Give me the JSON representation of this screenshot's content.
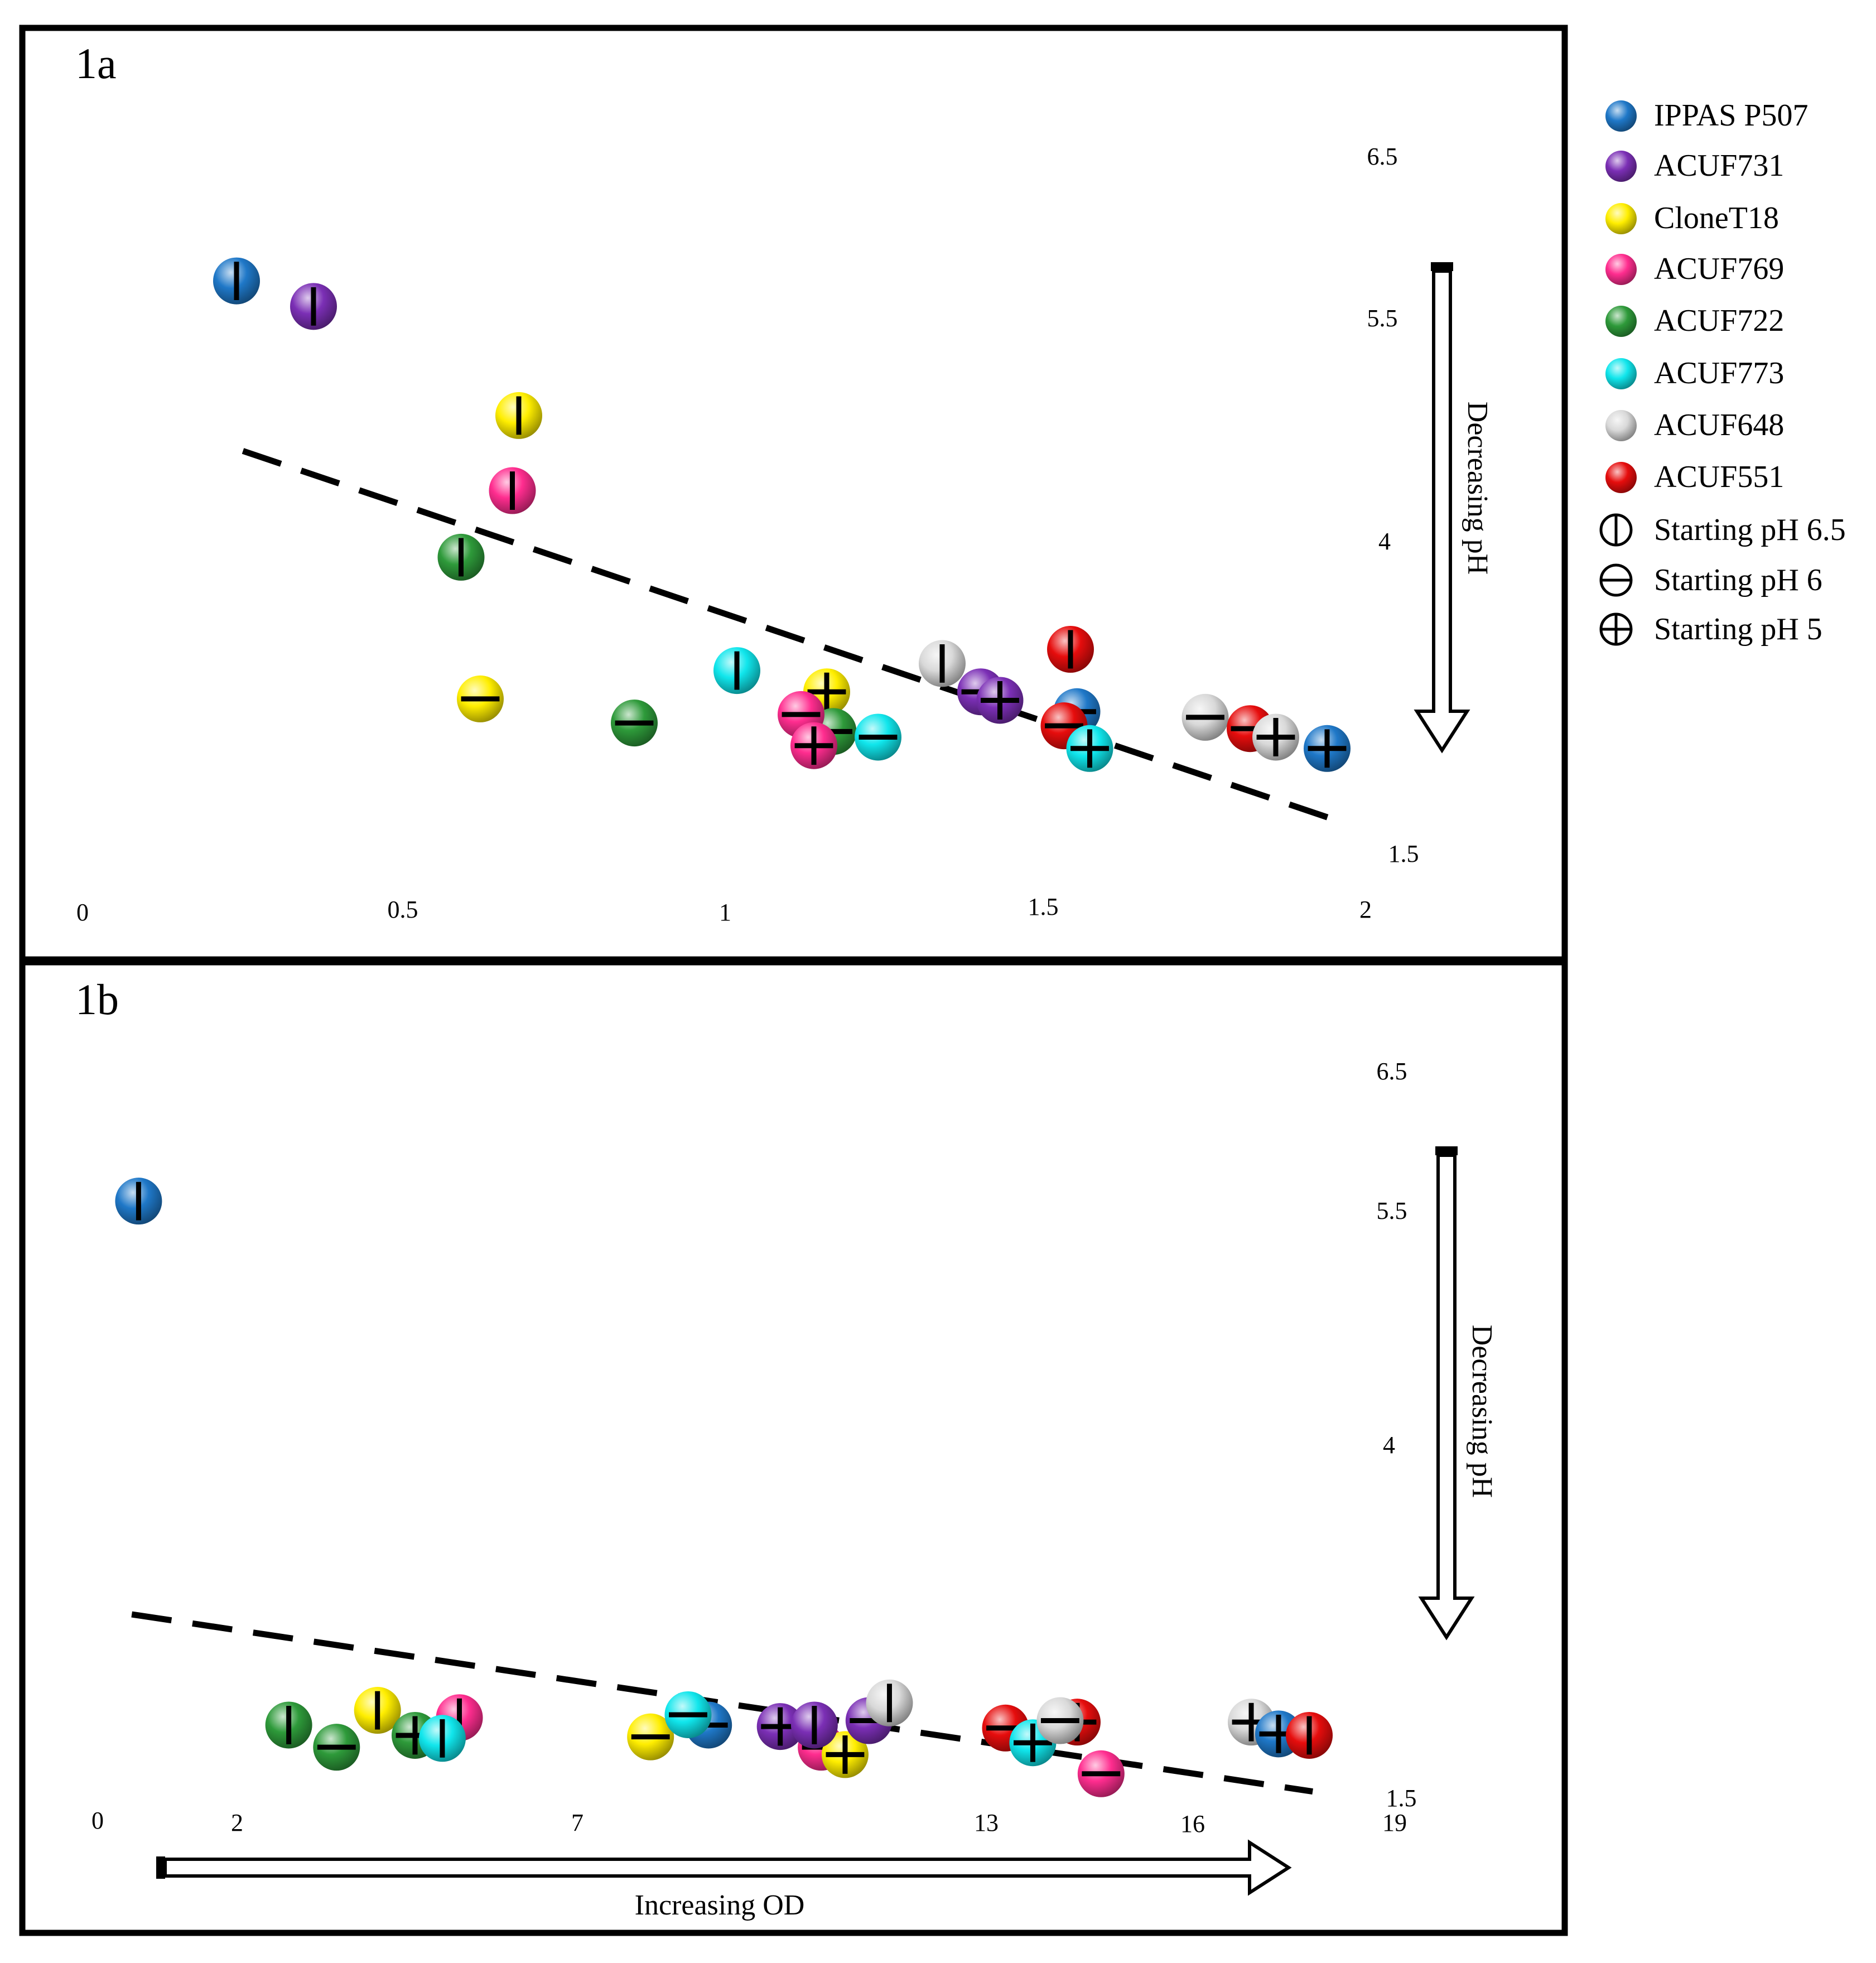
{
  "palette": {
    "IPPAS P507": "#1f78c8",
    "ACUF731": "#7b2fb5",
    "CloneT18": "#ffee00",
    "ACUF769": "#ff2d8f",
    "ACUF722": "#2e9a3a",
    "ACUF773": "#10e6ec",
    "ACUF648": "#d9d9d9",
    "ACUF551": "#e60d0d"
  },
  "legend": {
    "strains": [
      {
        "label": "IPPAS P507",
        "color": "#1f78c8"
      },
      {
        "label": "ACUF731",
        "color": "#7b2fb5"
      },
      {
        "label": "CloneT18",
        "color": "#ffee00"
      },
      {
        "label": "ACUF769",
        "color": "#ff2d8f"
      },
      {
        "label": "ACUF722",
        "color": "#2e9a3a"
      },
      {
        "label": "ACUF773",
        "color": "#10e6ec"
      },
      {
        "label": "ACUF648",
        "color": "#d9d9d9"
      },
      {
        "label": "ACUF551",
        "color": "#e60d0d"
      }
    ],
    "markers": [
      {
        "label": "Starting pH 6.5",
        "symbol": "vbar"
      },
      {
        "label": "Starting pH 6",
        "symbol": "hbar"
      },
      {
        "label": "Starting pH 5",
        "symbol": "plus"
      }
    ]
  },
  "chart_data": [
    {
      "type": "scatter",
      "panel_label": "1a",
      "x_ticks": [
        "0",
        "0.5",
        "1",
        "1.5",
        "2"
      ],
      "y_ticks": [
        "6.5",
        "5.5",
        "4",
        "1.5"
      ],
      "ylabel": "Decreasing pH",
      "xlim": [
        0,
        2
      ],
      "ylim": [
        1.5,
        6.5
      ],
      "trend": {
        "style": "dashed",
        "x": [
          0.25,
          1.95
        ],
        "y": [
          4.4,
          1.8
        ]
      },
      "points": [
        {
          "strain": "IPPAS P507",
          "start_pH": "6.5",
          "x": 0.24,
          "y": 5.6
        },
        {
          "strain": "ACUF731",
          "start_pH": "6.5",
          "x": 0.36,
          "y": 5.42
        },
        {
          "strain": "CloneT18",
          "start_pH": "6.5",
          "x": 0.68,
          "y": 4.65
        },
        {
          "strain": "ACUF769",
          "start_pH": "6.5",
          "x": 0.67,
          "y": 4.12
        },
        {
          "strain": "ACUF722",
          "start_pH": "6.5",
          "x": 0.59,
          "y": 3.65
        },
        {
          "strain": "CloneT18",
          "start_pH": "6",
          "x": 0.62,
          "y": 2.65
        },
        {
          "strain": "ACUF722",
          "start_pH": "6",
          "x": 0.86,
          "y": 2.48
        },
        {
          "strain": "ACUF773",
          "start_pH": "6.5",
          "x": 1.02,
          "y": 2.85
        },
        {
          "strain": "CloneT18",
          "start_pH": "5",
          "x": 1.16,
          "y": 2.7
        },
        {
          "strain": "ACUF722",
          "start_pH": "6",
          "x": 1.17,
          "y": 2.42
        },
        {
          "strain": "ACUF769",
          "start_pH": "6",
          "x": 1.12,
          "y": 2.54
        },
        {
          "strain": "ACUF769",
          "start_pH": "5",
          "x": 1.14,
          "y": 2.32
        },
        {
          "strain": "ACUF773",
          "start_pH": "6",
          "x": 1.24,
          "y": 2.38
        },
        {
          "strain": "ACUF648",
          "start_pH": "6.5",
          "x": 1.34,
          "y": 2.9
        },
        {
          "strain": "ACUF731",
          "start_pH": "6",
          "x": 1.4,
          "y": 2.7
        },
        {
          "strain": "ACUF731",
          "start_pH": "5",
          "x": 1.43,
          "y": 2.64
        },
        {
          "strain": "IPPAS P507",
          "start_pH": "6",
          "x": 1.55,
          "y": 2.56
        },
        {
          "strain": "ACUF551",
          "start_pH": "6.5",
          "x": 1.54,
          "y": 3.0
        },
        {
          "strain": "ACUF551",
          "start_pH": "6",
          "x": 1.53,
          "y": 2.46
        },
        {
          "strain": "ACUF773",
          "start_pH": "5",
          "x": 1.57,
          "y": 2.3
        },
        {
          "strain": "ACUF648",
          "start_pH": "6",
          "x": 1.75,
          "y": 2.52
        },
        {
          "strain": "ACUF551",
          "start_pH": "6",
          "x": 1.82,
          "y": 2.44
        },
        {
          "strain": "ACUF648",
          "start_pH": "5",
          "x": 1.86,
          "y": 2.38
        },
        {
          "strain": "IPPAS P507",
          "start_pH": "5",
          "x": 1.94,
          "y": 2.3
        }
      ]
    },
    {
      "type": "scatter",
      "panel_label": "1b",
      "x_ticks": [
        "0",
        "2",
        "7",
        "13",
        "16",
        "19"
      ],
      "y_ticks": [
        "6.5",
        "5.5",
        "4",
        "1.5"
      ],
      "xlabel": "Increasing OD",
      "ylabel": "Decreasing pH",
      "xlim": [
        0,
        19
      ],
      "ylim": [
        1.5,
        6.5
      ],
      "trend": {
        "style": "dashed",
        "x": [
          0.5,
          17.8
        ],
        "y": [
          2.8,
          1.6
        ]
      },
      "points": [
        {
          "strain": "IPPAS P507",
          "start_pH": "6.5",
          "x": 0.6,
          "y": 5.6
        },
        {
          "strain": "ACUF722",
          "start_pH": "6.5",
          "x": 2.8,
          "y": 2.05
        },
        {
          "strain": "ACUF722",
          "start_pH": "6",
          "x": 3.5,
          "y": 1.9
        },
        {
          "strain": "CloneT18",
          "start_pH": "6.5",
          "x": 4.1,
          "y": 2.15
        },
        {
          "strain": "ACUF722",
          "start_pH": "5",
          "x": 4.65,
          "y": 1.98
        },
        {
          "strain": "ACUF769",
          "start_pH": "6.5",
          "x": 5.3,
          "y": 2.1
        },
        {
          "strain": "ACUF773",
          "start_pH": "6.5",
          "x": 5.05,
          "y": 1.96
        },
        {
          "strain": "CloneT18",
          "start_pH": "6",
          "x": 8.1,
          "y": 1.97
        },
        {
          "strain": "IPPAS P507",
          "start_pH": "6",
          "x": 8.95,
          "y": 2.05
        },
        {
          "strain": "ACUF773",
          "start_pH": "6",
          "x": 8.65,
          "y": 2.12
        },
        {
          "strain": "ACUF731",
          "start_pH": "5",
          "x": 10.0,
          "y": 2.04
        },
        {
          "strain": "ACUF769",
          "start_pH": "6",
          "x": 10.6,
          "y": 1.9
        },
        {
          "strain": "CloneT18",
          "start_pH": "5",
          "x": 10.95,
          "y": 1.85
        },
        {
          "strain": "ACUF731",
          "start_pH": "6.5",
          "x": 10.5,
          "y": 2.05
        },
        {
          "strain": "ACUF731",
          "start_pH": "6",
          "x": 11.3,
          "y": 2.08
        },
        {
          "strain": "ACUF648",
          "start_pH": "6.5",
          "x": 11.6,
          "y": 2.2
        },
        {
          "strain": "ACUF551",
          "start_pH": "6",
          "x": 13.3,
          "y": 2.03
        },
        {
          "strain": "ACUF773",
          "start_pH": "5",
          "x": 13.7,
          "y": 1.93
        },
        {
          "strain": "ACUF551",
          "start_pH": "5",
          "x": 14.35,
          "y": 2.07
        },
        {
          "strain": "ACUF648",
          "start_pH": "6",
          "x": 14.1,
          "y": 2.08
        },
        {
          "strain": "ACUF769",
          "start_pH": "6",
          "x": 14.7,
          "y": 1.72
        },
        {
          "strain": "ACUF648",
          "start_pH": "5",
          "x": 16.9,
          "y": 2.07
        },
        {
          "strain": "IPPAS P507",
          "start_pH": "5",
          "x": 17.3,
          "y": 1.99
        },
        {
          "strain": "ACUF551",
          "start_pH": "6.5",
          "x": 17.75,
          "y": 1.98
        }
      ]
    }
  ]
}
